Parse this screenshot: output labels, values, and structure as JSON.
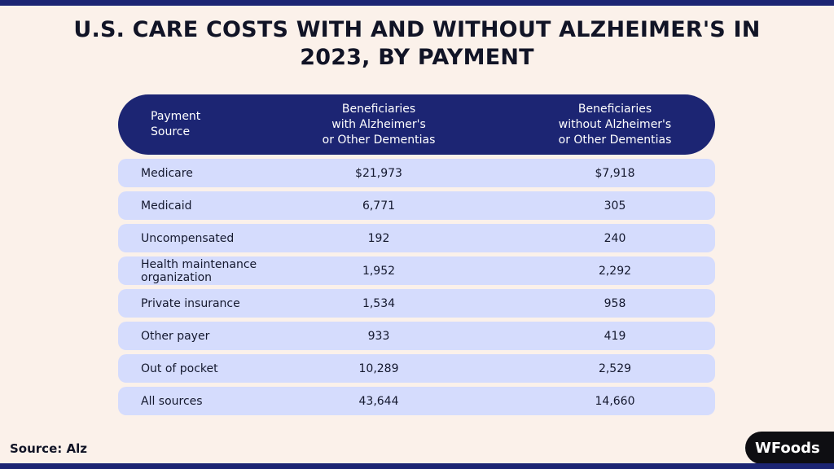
{
  "chart_data": {
    "type": "table",
    "title": "U.S. CARE COSTS WITH AND WITHOUT ALZHEIMER'S IN 2023, BY PAYMENT",
    "columns": [
      "Payment\nSource",
      "Beneficiaries\nwith Alzheimer's\nor Other Dementias",
      "Beneficiaries\nwithout Alzheimer's\nor Other Dementias"
    ],
    "rows": [
      {
        "source": "Medicare",
        "with": "$21,973",
        "without": "$7,918"
      },
      {
        "source": "Medicaid",
        "with": "6,771",
        "without": "305"
      },
      {
        "source": "Uncompensated",
        "with": "192",
        "without": "240"
      },
      {
        "source": "Health maintenance organization",
        "with": "1,952",
        "without": "2,292"
      },
      {
        "source": "Private insurance",
        "with": "1,534",
        "without": "958"
      },
      {
        "source": "Other payer",
        "with": "933",
        "without": "419"
      },
      {
        "source": "Out of pocket",
        "with": "10,289",
        "without": "2,529"
      },
      {
        "source": "All sources",
        "with": "43,644",
        "without": "14,660"
      }
    ]
  },
  "footer": {
    "source": "Source: Alz",
    "logo": "WFoods"
  },
  "colors": {
    "background": "#fbf1ea",
    "header": "#1c2573",
    "row": "#d5dcfd",
    "logo_bg": "#0e0e12"
  }
}
